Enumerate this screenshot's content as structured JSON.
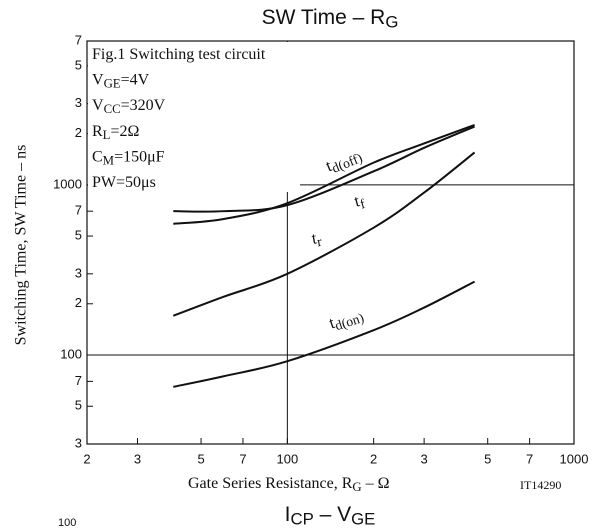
{
  "chart_data": {
    "type": "line",
    "title": [
      "SW Time  –  R",
      "G"
    ],
    "x_label": [
      "Gate Series Resistance, R",
      "G",
      " – Ω"
    ],
    "y_label": "Switching Time, SW Time – ns",
    "figure_id": "IT14290",
    "next_title": [
      "I",
      "CP",
      "  –  V",
      "GE"
    ],
    "next_tick": "100",
    "annotations": [
      [
        "Fig.1 Switching test circuit"
      ],
      [
        "V",
        "GE",
        "=4V"
      ],
      [
        "V",
        "CC",
        "=320V"
      ],
      [
        "R",
        "L",
        "=2Ω"
      ],
      [
        "C",
        "M",
        "=150μF"
      ],
      [
        "PW=50μs"
      ]
    ],
    "log_x": true,
    "log_y": true,
    "grid": true,
    "xlim": [
      20,
      1000
    ],
    "ylim": [
      30,
      7000
    ],
    "xticks": [
      {
        "value": 20,
        "label": "2"
      },
      {
        "value": 30,
        "label": "3"
      },
      {
        "value": 50,
        "label": "5"
      },
      {
        "value": 70,
        "label": "7"
      },
      100,
      {
        "value": 200,
        "label": "2"
      },
      {
        "value": 300,
        "label": "3"
      },
      {
        "value": 500,
        "label": "5"
      },
      {
        "value": 700,
        "label": "7"
      },
      1000
    ],
    "yticks": [
      {
        "value": 30,
        "label": "3"
      },
      {
        "value": 50,
        "label": "5"
      },
      {
        "value": 70,
        "label": "7"
      },
      100,
      {
        "value": 200,
        "label": "2"
      },
      {
        "value": 300,
        "label": "3"
      },
      {
        "value": 500,
        "label": "5"
      },
      {
        "value": 700,
        "label": "7"
      },
      1000,
      {
        "value": 2000,
        "label": "2"
      },
      {
        "value": 3000,
        "label": "3"
      },
      {
        "value": 5000,
        "label": "5"
      },
      {
        "value": 7000,
        "label": "7"
      }
    ],
    "x": [
      40,
      60,
      100,
      200,
      300,
      450
    ],
    "series": [
      {
        "name": [
          "t",
          "d(off)"
        ],
        "color": "#111111",
        "values": [
          700,
          700,
          760,
          1200,
          1650,
          2200
        ]
      },
      {
        "name": [
          "t",
          "f"
        ],
        "color": "#111111",
        "values": [
          590,
          630,
          780,
          1350,
          1750,
          2250
        ]
      },
      {
        "name": [
          "t",
          "r"
        ],
        "color": "#111111",
        "values": [
          170,
          220,
          300,
          560,
          900,
          1550
        ]
      },
      {
        "name": [
          "t",
          "d(on)"
        ],
        "color": "#111111",
        "values": [
          65,
          75,
          92,
          140,
          190,
          270
        ]
      }
    ]
  }
}
